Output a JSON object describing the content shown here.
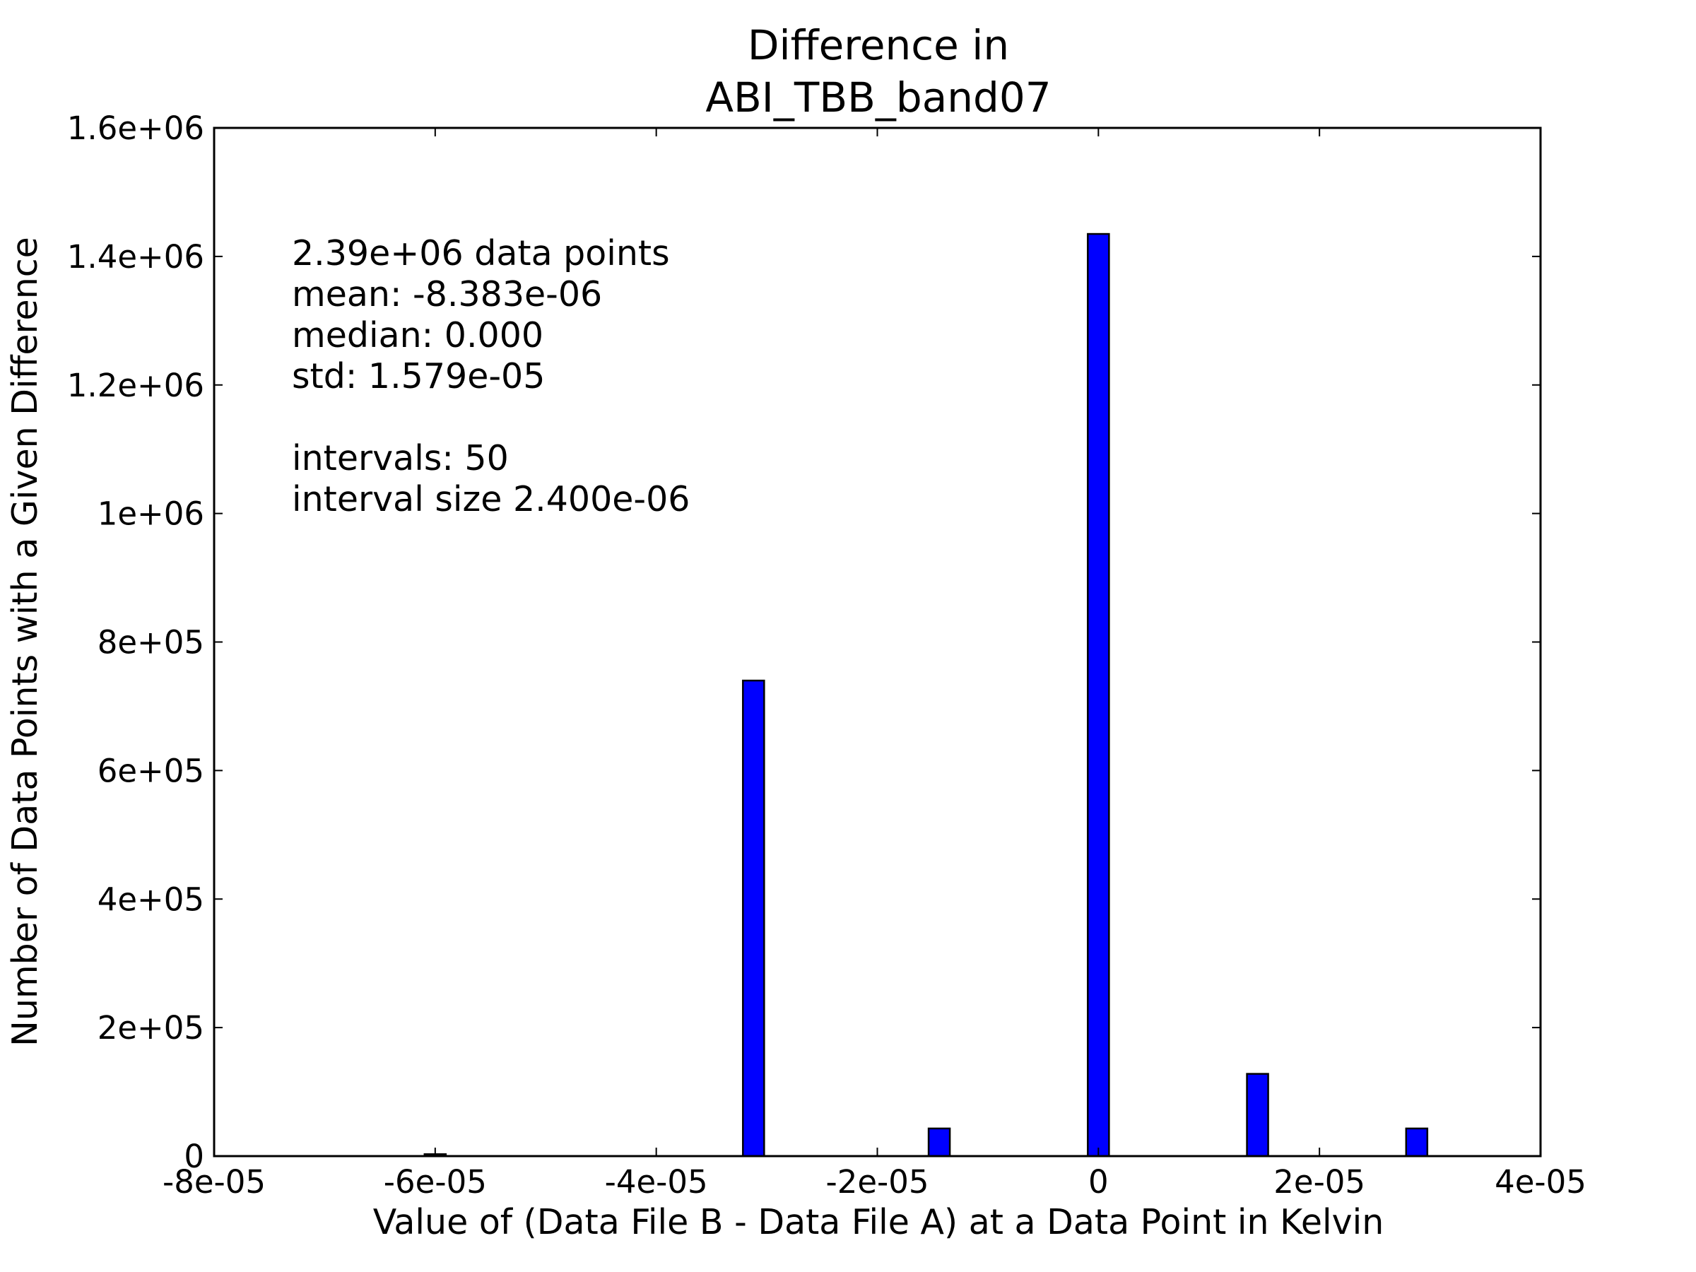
{
  "chart_data": {
    "type": "histogram",
    "title": [
      "Difference in",
      "ABI_TBB_band07"
    ],
    "xlabel": "Value of (Data File B - Data File A) at a Data Point in Kelvin",
    "ylabel": "Number of Data Points with a Given Difference",
    "annotation": [
      "2.39e+06 data points",
      "mean: -8.383e-06",
      "median: 0.000",
      "std: 1.579e-05",
      "",
      "intervals: 50",
      "interval size 2.400e-06"
    ],
    "bins": [
      -8.04e-05,
      -7.8e-05,
      -7.56e-05,
      -7.32e-05,
      -7.08e-05,
      -6.84e-05,
      -6.6e-05,
      -6.36e-05,
      -6.12e-05,
      -5.88e-05,
      -5.64e-05,
      -5.4e-05,
      -5.16e-05,
      -4.92e-05,
      -4.68e-05,
      -4.44e-05,
      -4.2e-05,
      -3.96e-05,
      -3.72e-05,
      -3.48e-05,
      -3.24e-05,
      -3e-05,
      -2.76e-05,
      -2.52e-05,
      -2.28e-05,
      -2.04e-05,
      -1.8e-05,
      -1.56e-05,
      -1.32e-05,
      -1.08e-05,
      -8.4e-06,
      -6e-06,
      -3.6e-06,
      -1.2e-06,
      1.2e-06,
      3.6e-06,
      6e-06,
      8.4e-06,
      1.08e-05,
      1.32e-05,
      1.56e-05,
      1.8e-05,
      2.04e-05,
      2.28e-05,
      2.52e-05,
      2.76e-05,
      3e-05,
      3.24e-05,
      3.48e-05,
      3.72e-05,
      3.96e-05
    ],
    "values": [
      0,
      0,
      0,
      0,
      0,
      0,
      0,
      0,
      3000,
      0,
      0,
      0,
      0,
      0,
      0,
      0,
      0,
      0,
      0,
      0,
      740000,
      0,
      0,
      0,
      0,
      0,
      0,
      43000,
      0,
      0,
      0,
      0,
      0,
      1435000,
      0,
      0,
      0,
      0,
      0,
      128000,
      0,
      0,
      0,
      0,
      0,
      43000,
      0,
      0,
      0,
      0
    ],
    "color": "#0000ff",
    "xlim": [
      -8e-05,
      4e-05
    ],
    "xticks": [
      {
        "value": -8e-05,
        "label": "-8e-05"
      },
      {
        "value": -6e-05,
        "label": "-6e-05"
      },
      {
        "value": -4e-05,
        "label": "-4e-05"
      },
      {
        "value": -2e-05,
        "label": "-2e-05"
      },
      0,
      {
        "value": 2e-05,
        "label": "2e-05"
      },
      {
        "value": 4e-05,
        "label": "4e-05"
      }
    ],
    "ylim": [
      0,
      1600000
    ],
    "yticks": [
      0,
      {
        "value": 200000,
        "label": "2e+05"
      },
      {
        "value": 400000,
        "label": "4e+05"
      },
      {
        "value": 600000,
        "label": "6e+05"
      },
      {
        "value": 800000,
        "label": "8e+05"
      },
      {
        "value": 1000000,
        "label": "1e+06"
      },
      {
        "value": 1200000,
        "label": "1.2e+06"
      },
      {
        "value": 1400000,
        "label": "1.4e+06"
      },
      {
        "value": 1600000,
        "label": "1.6e+06"
      }
    ],
    "grid": false
  }
}
